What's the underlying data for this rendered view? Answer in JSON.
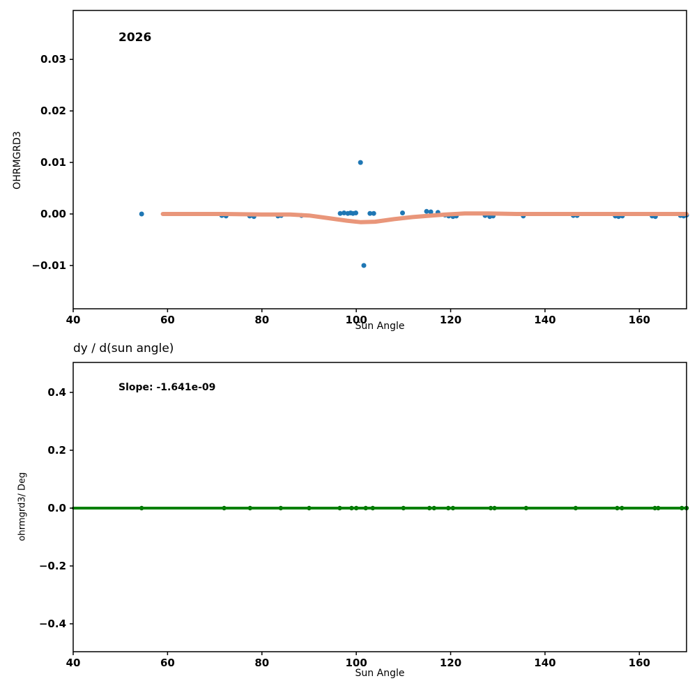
{
  "figure": {
    "bg": "#ffffff"
  },
  "top_plot": {
    "annotation": "2026",
    "xlabel": "Sun Angle",
    "ylabel": "OHRMGRD3"
  },
  "bottom_plot": {
    "title": "dy / d(sun angle)",
    "annotation": "Slope: -1.641e-09",
    "xlabel": "Sun Angle",
    "ylabel": "ohrmgrd3/ Deg"
  },
  "colors": {
    "scatter_blue": "#1f77b4",
    "trend_salmon": "#e9967a",
    "line_green": "#008000",
    "dot_darkgreen": "#006400",
    "axes": "#000000"
  },
  "chart_data": [
    {
      "name": "top-plot",
      "type": "scatter",
      "title": "2026",
      "xlabel": "Sun Angle",
      "ylabel": "OHRMGRD3",
      "xlim": [
        40,
        170
      ],
      "ylim": [
        -0.0184,
        0.0395
      ],
      "grid": false,
      "legend": "none",
      "xticks": [
        {
          "v": 40,
          "label": "40"
        },
        {
          "v": 60,
          "label": "60"
        },
        {
          "v": 80,
          "label": "80"
        },
        {
          "v": 100,
          "label": "100"
        },
        {
          "v": 120,
          "label": "120"
        },
        {
          "v": 140,
          "label": "140"
        },
        {
          "v": 160,
          "label": "160"
        }
      ],
      "yticks": [
        {
          "v": -0.01,
          "label": "−0.01"
        },
        {
          "v": 0.0,
          "label": "0.00"
        },
        {
          "v": 0.01,
          "label": "0.01"
        },
        {
          "v": 0.02,
          "label": "0.02"
        },
        {
          "v": 0.03,
          "label": "0.03"
        }
      ],
      "series": [
        {
          "name": "ohrmgrd3-points",
          "kind": "scatter",
          "color": "#1f77b4",
          "size": 3.5,
          "points": [
            [
              54.5,
              0.0
            ],
            [
              71.5,
              -0.0003
            ],
            [
              72.4,
              -0.0004
            ],
            [
              77.4,
              -0.0004
            ],
            [
              78.3,
              -0.0005
            ],
            [
              83.4,
              -0.0004
            ],
            [
              84.1,
              -0.0003
            ],
            [
              88.4,
              -0.0003
            ],
            [
              96.6,
              0.0001
            ],
            [
              97.4,
              0.0002
            ],
            [
              98.2,
              0.0001
            ],
            [
              98.8,
              0.0002
            ],
            [
              99.3,
              0.0001
            ],
            [
              99.9,
              0.0002
            ],
            [
              100.9,
              0.01
            ],
            [
              101.6,
              -0.01
            ],
            [
              102.9,
              0.0001
            ],
            [
              103.7,
              0.0001
            ],
            [
              109.8,
              0.0002
            ],
            [
              114.9,
              0.0005
            ],
            [
              115.8,
              0.0004
            ],
            [
              117.3,
              0.0003
            ],
            [
              118.8,
              -0.0002
            ],
            [
              119.6,
              -0.0004
            ],
            [
              120.5,
              -0.0005
            ],
            [
              121.2,
              -0.0004
            ],
            [
              127.3,
              -0.0003
            ],
            [
              128.3,
              -0.0005
            ],
            [
              129.0,
              -0.0004
            ],
            [
              135.4,
              -0.0004
            ],
            [
              146.0,
              -0.0003
            ],
            [
              146.8,
              -0.0003
            ],
            [
              154.9,
              -0.0004
            ],
            [
              155.6,
              -0.0005
            ],
            [
              156.4,
              -0.0004
            ],
            [
              162.7,
              -0.0004
            ],
            [
              163.4,
              -0.0005
            ],
            [
              168.7,
              -0.0003
            ],
            [
              169.4,
              -0.0004
            ],
            [
              170.0,
              -0.0002
            ]
          ]
        },
        {
          "name": "trend-line",
          "kind": "line",
          "color": "#e9967a",
          "width": 6,
          "points": [
            [
              59,
              0.0
            ],
            [
              65,
              0.0
            ],
            [
              72,
              0.0
            ],
            [
              80,
              -0.0001
            ],
            [
              86,
              -0.0001
            ],
            [
              90,
              -0.0003
            ],
            [
              94,
              -0.0008
            ],
            [
              98,
              -0.0013
            ],
            [
              101,
              -0.0016
            ],
            [
              104,
              -0.0015
            ],
            [
              108,
              -0.001
            ],
            [
              112,
              -0.0006
            ],
            [
              116,
              -0.0003
            ],
            [
              119,
              -0.0001
            ],
            [
              123,
              0.0001
            ],
            [
              128,
              0.0001
            ],
            [
              134,
              0.0
            ],
            [
              140,
              0.0
            ],
            [
              150,
              0.0
            ],
            [
              160,
              0.0
            ],
            [
              170,
              0.0
            ]
          ]
        }
      ]
    },
    {
      "name": "bottom-plot",
      "type": "scatter",
      "title": "dy / d(sun angle)",
      "annotation": "Slope: -1.641e-09",
      "xlabel": "Sun Angle",
      "ylabel": "ohrmgrd3/ Deg",
      "xlim": [
        40,
        170
      ],
      "ylim": [
        -0.4964,
        0.5036
      ],
      "grid": false,
      "legend": "none",
      "xticks": [
        {
          "v": 40,
          "label": "40"
        },
        {
          "v": 60,
          "label": "60"
        },
        {
          "v": 80,
          "label": "80"
        },
        {
          "v": 100,
          "label": "100"
        },
        {
          "v": 120,
          "label": "120"
        },
        {
          "v": 140,
          "label": "140"
        },
        {
          "v": 160,
          "label": "160"
        }
      ],
      "yticks": [
        {
          "v": -0.4,
          "label": "−0.4"
        },
        {
          "v": -0.2,
          "label": "−0.2"
        },
        {
          "v": 0.0,
          "label": "0.0"
        },
        {
          "v": 0.2,
          "label": "0.2"
        },
        {
          "v": 0.4,
          "label": "0.4"
        }
      ],
      "series": [
        {
          "name": "derivative-points",
          "kind": "scatter",
          "color": "#006400",
          "size": 3.2,
          "points": [
            [
              54.5,
              0.0
            ],
            [
              72.0,
              0.0
            ],
            [
              77.5,
              0.0
            ],
            [
              84.0,
              0.0
            ],
            [
              90.0,
              0.0
            ],
            [
              96.5,
              0.0
            ],
            [
              99.0,
              0.0
            ],
            [
              100.0,
              0.0
            ],
            [
              102.0,
              0.0
            ],
            [
              103.5,
              0.0
            ],
            [
              110.0,
              0.0
            ],
            [
              115.5,
              0.0
            ],
            [
              116.5,
              0.0
            ],
            [
              119.5,
              0.0
            ],
            [
              120.5,
              0.0
            ],
            [
              128.5,
              0.0
            ],
            [
              129.3,
              0.0
            ],
            [
              136.0,
              0.0
            ],
            [
              146.5,
              0.0
            ],
            [
              155.3,
              0.0
            ],
            [
              156.3,
              0.0
            ],
            [
              163.3,
              0.0
            ],
            [
              164.0,
              0.0
            ],
            [
              169.0,
              0.0
            ],
            [
              170.0,
              0.0
            ]
          ]
        },
        {
          "name": "zero-slope-line",
          "kind": "line",
          "color": "#008000",
          "width": 4,
          "points": [
            [
              40,
              0.0
            ],
            [
              170,
              0.0
            ]
          ]
        }
      ]
    }
  ]
}
